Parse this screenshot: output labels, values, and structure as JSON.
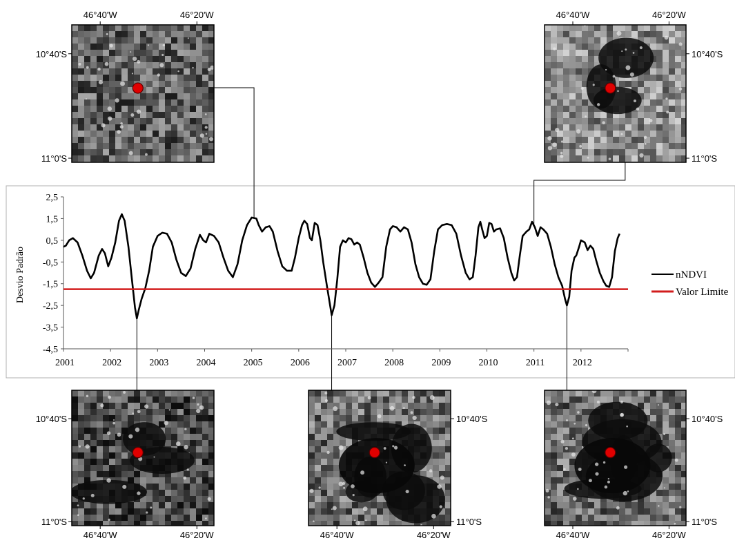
{
  "maps": [
    {
      "id": "top-left",
      "lon_labels": [
        "46°40'W",
        "46°20'W"
      ],
      "lat_labels": [
        "10°40'S",
        "11°0'S"
      ],
      "lon_side": "top",
      "lat_side": "left",
      "burn": "none",
      "seed": 11
    },
    {
      "id": "top-right",
      "lon_labels": [
        "46°40'W",
        "46°20'W"
      ],
      "lat_labels": [
        "10°40'S",
        "11°0'S"
      ],
      "lon_side": "top",
      "lat_side": "right",
      "burn": "light",
      "seed": 23
    },
    {
      "id": "bottom-left",
      "lon_labels": [
        "46°40'W",
        "46°20'W"
      ],
      "lat_labels": [
        "10°40'S",
        "11°0'S"
      ],
      "lon_side": "bottom",
      "lat_side": "left",
      "burn": "medium",
      "seed": 37
    },
    {
      "id": "bottom-mid",
      "lon_labels": [
        "46°40'W",
        "46°20'W"
      ],
      "lat_labels": [
        "10°40'S",
        "11°0'S"
      ],
      "lon_side": "bottom",
      "lat_side": "right",
      "burn": "heavy",
      "seed": 51
    },
    {
      "id": "bottom-right",
      "lon_labels": [
        "46°40'W",
        "46°20'W"
      ],
      "lat_labels": [
        "10°40'S",
        "11°0'S"
      ],
      "lon_side": "bottom",
      "lat_side": "right",
      "burn": "heavy",
      "seed": 73
    }
  ],
  "chart_data": {
    "type": "line",
    "xlabel": "",
    "ylabel": "Desvio Padrão",
    "xlim": [
      2001,
      2013
    ],
    "ylim": [
      -4.5,
      2.5
    ],
    "x_ticks": [
      "2001",
      "2002",
      "2003",
      "2004",
      "2005",
      "2006",
      "2007",
      "2008",
      "2009",
      "2010",
      "2011",
      "2012"
    ],
    "y_ticks": [
      "2,5",
      "1,5",
      "0,5",
      "-0,5",
      "-1,5",
      "-2,5",
      "-3,5",
      "-4,5"
    ],
    "y_tick_values": [
      2.5,
      1.5,
      0.5,
      -0.5,
      -1.5,
      -2.5,
      -3.5,
      -4.5
    ],
    "legend_position": "right",
    "series": [
      {
        "name": "nNDVI",
        "color": "#000000",
        "points": [
          [
            2001.0,
            0.2
          ],
          [
            2001.05,
            0.25
          ],
          [
            2001.12,
            0.5
          ],
          [
            2001.2,
            0.6
          ],
          [
            2001.3,
            0.4
          ],
          [
            2001.4,
            -0.2
          ],
          [
            2001.5,
            -0.9
          ],
          [
            2001.58,
            -1.25
          ],
          [
            2001.65,
            -1.0
          ],
          [
            2001.75,
            -0.2
          ],
          [
            2001.82,
            0.1
          ],
          [
            2001.88,
            -0.1
          ],
          [
            2001.95,
            -0.7
          ],
          [
            2002.02,
            -0.3
          ],
          [
            2002.1,
            0.4
          ],
          [
            2002.18,
            1.4
          ],
          [
            2002.24,
            1.7
          ],
          [
            2002.3,
            1.4
          ],
          [
            2002.38,
            0.2
          ],
          [
            2002.45,
            -1.2
          ],
          [
            2002.52,
            -2.6
          ],
          [
            2002.56,
            -3.1
          ],
          [
            2002.6,
            -2.7
          ],
          [
            2002.66,
            -2.2
          ],
          [
            2002.74,
            -1.7
          ],
          [
            2002.82,
            -0.9
          ],
          [
            2002.9,
            0.2
          ],
          [
            2003.0,
            0.7
          ],
          [
            2003.1,
            0.85
          ],
          [
            2003.2,
            0.8
          ],
          [
            2003.3,
            0.4
          ],
          [
            2003.4,
            -0.4
          ],
          [
            2003.5,
            -1.0
          ],
          [
            2003.6,
            -1.15
          ],
          [
            2003.7,
            -0.8
          ],
          [
            2003.8,
            0.1
          ],
          [
            2003.9,
            0.75
          ],
          [
            2003.97,
            0.5
          ],
          [
            2004.03,
            0.4
          ],
          [
            2004.1,
            0.8
          ],
          [
            2004.2,
            0.7
          ],
          [
            2004.3,
            0.4
          ],
          [
            2004.4,
            -0.3
          ],
          [
            2004.5,
            -0.9
          ],
          [
            2004.6,
            -1.2
          ],
          [
            2004.7,
            -0.6
          ],
          [
            2004.8,
            0.5
          ],
          [
            2004.9,
            1.2
          ],
          [
            2005.0,
            1.55
          ],
          [
            2005.1,
            1.5
          ],
          [
            2005.15,
            1.2
          ],
          [
            2005.22,
            0.9
          ],
          [
            2005.3,
            1.1
          ],
          [
            2005.38,
            1.15
          ],
          [
            2005.45,
            0.9
          ],
          [
            2005.55,
            0.0
          ],
          [
            2005.65,
            -0.7
          ],
          [
            2005.75,
            -0.9
          ],
          [
            2005.85,
            -0.9
          ],
          [
            2005.92,
            -0.3
          ],
          [
            2006.0,
            0.6
          ],
          [
            2006.07,
            1.2
          ],
          [
            2006.12,
            1.4
          ],
          [
            2006.18,
            1.25
          ],
          [
            2006.24,
            0.6
          ],
          [
            2006.28,
            0.5
          ],
          [
            2006.34,
            1.3
          ],
          [
            2006.4,
            1.2
          ],
          [
            2006.46,
            0.5
          ],
          [
            2006.52,
            -0.5
          ],
          [
            2006.6,
            -1.6
          ],
          [
            2006.66,
            -2.4
          ],
          [
            2006.7,
            -2.95
          ],
          [
            2006.76,
            -2.5
          ],
          [
            2006.82,
            -1.3
          ],
          [
            2006.88,
            0.2
          ],
          [
            2006.94,
            0.5
          ],
          [
            2007.0,
            0.4
          ],
          [
            2007.06,
            0.6
          ],
          [
            2007.12,
            0.55
          ],
          [
            2007.18,
            0.3
          ],
          [
            2007.24,
            0.4
          ],
          [
            2007.3,
            0.3
          ],
          [
            2007.38,
            -0.3
          ],
          [
            2007.46,
            -1.0
          ],
          [
            2007.54,
            -1.45
          ],
          [
            2007.62,
            -1.65
          ],
          [
            2007.7,
            -1.45
          ],
          [
            2007.78,
            -1.2
          ],
          [
            2007.86,
            0.2
          ],
          [
            2007.94,
            1.0
          ],
          [
            2008.0,
            1.15
          ],
          [
            2008.08,
            1.1
          ],
          [
            2008.16,
            0.9
          ],
          [
            2008.24,
            1.1
          ],
          [
            2008.32,
            1.0
          ],
          [
            2008.4,
            0.4
          ],
          [
            2008.48,
            -0.6
          ],
          [
            2008.56,
            -1.2
          ],
          [
            2008.64,
            -1.5
          ],
          [
            2008.72,
            -1.55
          ],
          [
            2008.8,
            -1.3
          ],
          [
            2008.88,
            0.0
          ],
          [
            2008.96,
            1.0
          ],
          [
            2009.05,
            1.2
          ],
          [
            2009.15,
            1.25
          ],
          [
            2009.25,
            1.2
          ],
          [
            2009.35,
            0.8
          ],
          [
            2009.45,
            -0.2
          ],
          [
            2009.55,
            -1.0
          ],
          [
            2009.63,
            -1.3
          ],
          [
            2009.7,
            -1.2
          ],
          [
            2009.76,
            -0.2
          ],
          [
            2009.82,
            1.1
          ],
          [
            2009.86,
            1.35
          ],
          [
            2009.9,
            1.0
          ],
          [
            2009.95,
            0.6
          ],
          [
            2010.0,
            0.7
          ],
          [
            2010.05,
            1.3
          ],
          [
            2010.1,
            1.25
          ],
          [
            2010.15,
            0.9
          ],
          [
            2010.2,
            1.0
          ],
          [
            2010.28,
            1.05
          ],
          [
            2010.36,
            0.6
          ],
          [
            2010.44,
            -0.3
          ],
          [
            2010.52,
            -1.0
          ],
          [
            2010.58,
            -1.35
          ],
          [
            2010.64,
            -1.2
          ],
          [
            2010.7,
            -0.2
          ],
          [
            2010.76,
            0.7
          ],
          [
            2010.84,
            0.9
          ],
          [
            2010.9,
            1.0
          ],
          [
            2010.96,
            1.35
          ],
          [
            2011.02,
            1.1
          ],
          [
            2011.08,
            0.7
          ],
          [
            2011.14,
            1.1
          ],
          [
            2011.2,
            1.0
          ],
          [
            2011.28,
            0.8
          ],
          [
            2011.36,
            0.2
          ],
          [
            2011.44,
            -0.6
          ],
          [
            2011.52,
            -1.2
          ],
          [
            2011.6,
            -1.6
          ],
          [
            2011.66,
            -2.2
          ],
          [
            2011.7,
            -2.5
          ],
          [
            2011.75,
            -2.1
          ],
          [
            2011.8,
            -0.9
          ],
          [
            2011.86,
            -0.3
          ],
          [
            2011.9,
            -0.2
          ],
          [
            2011.96,
            0.2
          ],
          [
            2012.0,
            0.5
          ],
          [
            2012.08,
            0.4
          ],
          [
            2012.14,
            0.05
          ],
          [
            2012.2,
            0.25
          ],
          [
            2012.26,
            0.1
          ],
          [
            2012.32,
            -0.4
          ],
          [
            2012.4,
            -1.0
          ],
          [
            2012.48,
            -1.4
          ],
          [
            2012.54,
            -1.6
          ],
          [
            2012.6,
            -1.65
          ],
          [
            2012.66,
            -1.2
          ],
          [
            2012.72,
            0.0
          ],
          [
            2012.78,
            0.6
          ],
          [
            2012.82,
            0.8
          ]
        ]
      },
      {
        "name": "Valor Limite",
        "color": "#d21c1c",
        "points": [
          [
            2001.0,
            -1.75
          ],
          [
            2013.0,
            -1.75
          ]
        ]
      }
    ],
    "callouts": [
      {
        "map": "top-left",
        "x": 2005.05
      },
      {
        "map": "top-right",
        "x": 2011.0
      },
      {
        "map": "bottom-left",
        "x": 2002.56
      },
      {
        "map": "bottom-mid",
        "x": 2006.7
      },
      {
        "map": "bottom-right",
        "x": 2011.7
      }
    ]
  }
}
